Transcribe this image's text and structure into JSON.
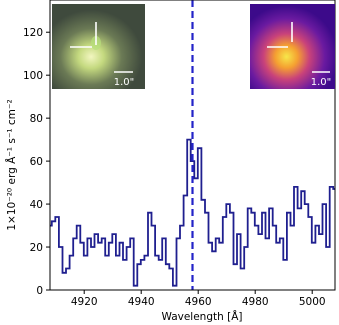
{
  "chart_data": {
    "type": "line",
    "drawstyle": "steps-mid",
    "title": "",
    "xlabel": "Wavelength [Å]",
    "ylabel": "1×10⁻²⁰ erg Å⁻¹ s⁻¹ cm⁻²",
    "xlim": [
      4908,
      5008
    ],
    "ylim": [
      0,
      135
    ],
    "xticks": [
      4920,
      4940,
      4960,
      4980,
      5000
    ],
    "yticks": [
      0,
      20,
      40,
      60,
      80,
      100,
      120
    ],
    "line_color": "#1f1f8f",
    "marker_line": {
      "x": 4958.0,
      "style": "dashed",
      "color": "#2323c8"
    },
    "series": [
      {
        "x": [
          4908,
          4909.25,
          4910.5,
          4911.75,
          4913,
          4914.25,
          4915.5,
          4916.75,
          4918,
          4919.25,
          4920.5,
          4921.75,
          4923,
          4924.25,
          4925.5,
          4926.75,
          4928,
          4929.25,
          4930.5,
          4931.75,
          4933,
          4934.25,
          4935.5,
          4936.75,
          4938,
          4939.25,
          4940.5,
          4941.75,
          4943,
          4944.25,
          4945.5,
          4946.75,
          4948,
          4949.25,
          4950.5,
          4951.75,
          4953,
          4954.25,
          4955.5,
          4956.75,
          4958,
          4959.25,
          4960.5,
          4961.75,
          4963,
          4964.25,
          4965.5,
          4966.75,
          4968,
          4969.25,
          4970.5,
          4971.75,
          4973,
          4974.25,
          4975.5,
          4976.75,
          4978,
          4979.25,
          4980.5,
          4981.75,
          4983,
          4984.25,
          4985.5,
          4986.75,
          4988,
          4989.25,
          4990.5,
          4991.75,
          4993,
          4994.25,
          4995.5,
          4996.75,
          4998,
          4999.25,
          5000.5,
          5001.75,
          5003,
          5004.25,
          5005.5,
          5006.75,
          5008
        ],
        "y": [
          30,
          32,
          34,
          20,
          8,
          10,
          16,
          24,
          30,
          22,
          16,
          24,
          20,
          26,
          22,
          24,
          16,
          22,
          26,
          16,
          22,
          14,
          20,
          24,
          2,
          12,
          14,
          16,
          36,
          30,
          16,
          14,
          24,
          12,
          10,
          2,
          24,
          30,
          44,
          70,
          60,
          52,
          66,
          42,
          36,
          22,
          18,
          24,
          22,
          34,
          40,
          36,
          12,
          26,
          10,
          20,
          38,
          36,
          30,
          26,
          36,
          24,
          38,
          30,
          22,
          24,
          14,
          36,
          30,
          48,
          38,
          46,
          40,
          34,
          22,
          30,
          26,
          40,
          20,
          48,
          47
        ]
      }
    ],
    "insets": [
      {
        "scale_label": "1.0\"",
        "colormap": "natural"
      },
      {
        "scale_label": "1.0\"",
        "colormap": "plasma"
      }
    ]
  }
}
